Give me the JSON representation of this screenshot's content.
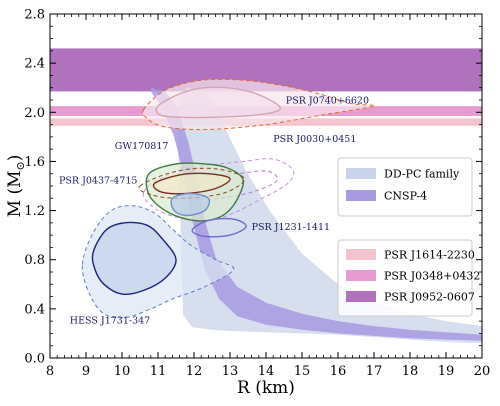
{
  "chart_data": {
    "type": "area",
    "xlabel": "R (km)",
    "ylabel_main": "M (M",
    "ylabel_sub": "⊙",
    "ylabel_end": ")",
    "xlim": [
      8,
      20
    ],
    "ylim": [
      0.0,
      2.8
    ],
    "xticks": [
      8,
      9,
      10,
      11,
      12,
      13,
      14,
      15,
      16,
      17,
      18,
      19,
      20
    ],
    "xtick_labels": [
      "8",
      "9",
      "10",
      "11",
      "12",
      "13",
      "14",
      "15",
      "16",
      "17",
      "18",
      "19",
      "20"
    ],
    "yticks": [
      0.0,
      0.4,
      0.8,
      1.2,
      1.6,
      2.0,
      2.4,
      2.8
    ],
    "ytick_labels": [
      "0.0",
      "0.4",
      "0.8",
      "1.2",
      "1.6",
      "2.0",
      "2.4",
      "2.8"
    ],
    "mass_bands": [
      {
        "name": "PSR J1614-2230",
        "y": [
          1.89,
          1.95
        ],
        "color": "#f3c4cd"
      },
      {
        "name": "PSR J0348+0432",
        "y": [
          1.97,
          2.05
        ],
        "color": "#e79bd1"
      },
      {
        "name": "PSR J0952-0607",
        "y": [
          2.17,
          2.52
        ],
        "color": "#b072bd"
      }
    ],
    "eos_regions": [
      {
        "name": "DD-PC family",
        "color": "#c9d4ea",
        "outline": [
          [
            11.8,
            2.2
          ],
          [
            12.2,
            2.18
          ],
          [
            12.55,
            2.08
          ],
          [
            12.9,
            1.85
          ],
          [
            13.4,
            1.55
          ],
          [
            14.1,
            1.2
          ],
          [
            15.0,
            0.85
          ],
          [
            16.0,
            0.6
          ],
          [
            17.0,
            0.46
          ],
          [
            18.0,
            0.36
          ],
          [
            19.0,
            0.3
          ],
          [
            20.0,
            0.26
          ],
          [
            20.0,
            0.12
          ],
          [
            19.0,
            0.13
          ],
          [
            18.0,
            0.15
          ],
          [
            17.0,
            0.17
          ],
          [
            16.0,
            0.19
          ],
          [
            15.0,
            0.2
          ],
          [
            14.0,
            0.21
          ],
          [
            13.0,
            0.22
          ],
          [
            12.5,
            0.23
          ],
          [
            11.95,
            0.25
          ],
          [
            11.7,
            0.35
          ],
          [
            11.65,
            0.8
          ],
          [
            11.6,
            1.3
          ],
          [
            11.55,
            1.8
          ],
          [
            11.6,
            2.1
          ]
        ]
      },
      {
        "name": "CNSP-4",
        "color": "#a79ae0",
        "outline": [
          [
            10.8,
            2.2
          ],
          [
            11.2,
            2.17
          ],
          [
            11.55,
            2.03
          ],
          [
            11.85,
            1.75
          ],
          [
            12.05,
            1.5
          ],
          [
            12.3,
            1.12
          ],
          [
            12.6,
            0.82
          ],
          [
            13.2,
            0.58
          ],
          [
            14.0,
            0.45
          ],
          [
            15.0,
            0.36
          ],
          [
            16.0,
            0.3
          ],
          [
            17.0,
            0.26
          ],
          [
            18.0,
            0.23
          ],
          [
            19.0,
            0.21
          ],
          [
            20.0,
            0.19
          ],
          [
            20.0,
            0.14
          ],
          [
            19.0,
            0.15
          ],
          [
            18.0,
            0.16
          ],
          [
            17.0,
            0.18
          ],
          [
            16.0,
            0.2
          ],
          [
            15.0,
            0.23
          ],
          [
            14.0,
            0.27
          ],
          [
            13.2,
            0.34
          ],
          [
            12.7,
            0.48
          ],
          [
            12.3,
            0.72
          ],
          [
            11.95,
            1.12
          ],
          [
            11.7,
            1.5
          ],
          [
            11.45,
            1.8
          ],
          [
            11.1,
            2.05
          ],
          [
            10.8,
            2.17
          ]
        ]
      }
    ],
    "legend": {
      "placement": "right",
      "eos_entries": [
        "DD-PC family",
        "CNSP-4"
      ],
      "band_entries": [
        "PSR J1614-2230",
        "PSR J0348+0432",
        "PSR J0952-0607"
      ]
    },
    "annotations": [
      {
        "text": "PSR J0740+6620",
        "x": 14.55,
        "y": 2.07,
        "color": "#1a1a66"
      },
      {
        "text": "GW170817",
        "x": 9.8,
        "y": 1.7,
        "color": "#1a1a66"
      },
      {
        "text": "PSR J0030+0451",
        "x": 14.2,
        "y": 1.76,
        "color": "#1a1a66"
      },
      {
        "text": "PSR J0437-4715",
        "x": 8.25,
        "y": 1.42,
        "color": "#1a1a66"
      },
      {
        "text": "PSR J1231-1411",
        "x": 13.6,
        "y": 1.04,
        "color": "#1a1a66"
      },
      {
        "text": "HESS J1731-347",
        "x": 8.55,
        "y": 0.28,
        "color": "#1a1a66"
      }
    ],
    "contours": [
      {
        "name": "PSR J0740+6620 (68%)",
        "style": "solid",
        "color": "#7a1212",
        "fill": "#ecd0e4",
        "points": [
          [
            11.0,
            2.05
          ],
          [
            11.6,
            2.15
          ],
          [
            12.3,
            2.2
          ],
          [
            13.2,
            2.19
          ],
          [
            13.9,
            2.13
          ],
          [
            14.4,
            2.03
          ],
          [
            13.8,
            1.98
          ],
          [
            12.6,
            1.96
          ],
          [
            11.6,
            1.96
          ],
          [
            11.05,
            1.98
          ]
        ]
      },
      {
        "name": "PSR J0740+6620 (95%)",
        "style": "dashed",
        "color": "#e06a2a",
        "fill": "#f6e6ef",
        "points": [
          [
            10.6,
            2.02
          ],
          [
            11.2,
            2.18
          ],
          [
            12.2,
            2.26
          ],
          [
            13.4,
            2.26
          ],
          [
            14.6,
            2.21
          ],
          [
            15.6,
            2.14
          ],
          [
            16.4,
            2.07
          ],
          [
            17.0,
            2.05
          ],
          [
            15.6,
            1.98
          ],
          [
            14.0,
            1.9
          ],
          [
            12.4,
            1.86
          ],
          [
            11.2,
            1.88
          ],
          [
            10.7,
            1.95
          ]
        ]
      },
      {
        "name": "PSR J0030+0451 (95%)",
        "style": "dashed",
        "color": "#c98be0",
        "fill": "none",
        "points": [
          [
            10.6,
            1.35
          ],
          [
            11.2,
            1.48
          ],
          [
            12.2,
            1.56
          ],
          [
            13.4,
            1.6
          ],
          [
            14.2,
            1.62
          ],
          [
            14.75,
            1.53
          ],
          [
            14.6,
            1.42
          ],
          [
            13.9,
            1.3
          ],
          [
            13.1,
            1.18
          ],
          [
            12.4,
            1.12
          ],
          [
            11.6,
            1.14
          ],
          [
            10.9,
            1.22
          ]
        ]
      },
      {
        "name": "PSR J0030+0451 (68%)",
        "style": "dashed",
        "color": "#b07ad8",
        "fill": "none",
        "points": [
          [
            11.4,
            1.38
          ],
          [
            12.3,
            1.46
          ],
          [
            13.2,
            1.5
          ],
          [
            14.05,
            1.52
          ],
          [
            14.3,
            1.44
          ],
          [
            13.6,
            1.35
          ],
          [
            12.7,
            1.3
          ],
          [
            11.8,
            1.3
          ]
        ]
      },
      {
        "name": "PSR J0437-4715 (95%)",
        "style": "solid",
        "color": "#3f7a3f",
        "fill": "#dbead0",
        "points": [
          [
            10.75,
            1.5
          ],
          [
            11.5,
            1.58
          ],
          [
            12.3,
            1.58
          ],
          [
            12.9,
            1.55
          ],
          [
            13.35,
            1.46
          ],
          [
            13.25,
            1.32
          ],
          [
            12.9,
            1.18
          ],
          [
            12.4,
            1.12
          ],
          [
            11.8,
            1.13
          ],
          [
            11.2,
            1.2
          ],
          [
            10.75,
            1.33
          ]
        ]
      },
      {
        "name": "GW170817 (68%)",
        "style": "solid",
        "color": "#7a2e1e",
        "fill": "#f4e8c8",
        "points": [
          [
            10.9,
            1.42
          ],
          [
            11.6,
            1.49
          ],
          [
            12.4,
            1.5
          ],
          [
            13.0,
            1.46
          ],
          [
            12.6,
            1.38
          ],
          [
            11.8,
            1.34
          ],
          [
            11.1,
            1.35
          ]
        ]
      },
      {
        "name": "GW170817 (95%)",
        "style": "dashed",
        "color": "#8a4a1c",
        "fill": "none",
        "points": [
          [
            10.5,
            1.4
          ],
          [
            11.5,
            1.52
          ],
          [
            12.6,
            1.54
          ],
          [
            13.4,
            1.46
          ],
          [
            12.8,
            1.34
          ],
          [
            11.6,
            1.3
          ],
          [
            10.8,
            1.33
          ]
        ]
      },
      {
        "name": "PSR J0437-4715 (68%)",
        "style": "solid",
        "color": "#6f8fc9",
        "fill": "#b9cce8",
        "points": [
          [
            11.4,
            1.3
          ],
          [
            11.9,
            1.34
          ],
          [
            12.4,
            1.3
          ],
          [
            12.3,
            1.2
          ],
          [
            11.8,
            1.16
          ],
          [
            11.45,
            1.2
          ]
        ]
      },
      {
        "name": "PSR J1231-1411 (68%)",
        "style": "solid",
        "color": "#6a6ad0",
        "fill": "none",
        "points": [
          [
            11.95,
            1.04
          ],
          [
            12.4,
            1.12
          ],
          [
            13.1,
            1.13
          ],
          [
            13.45,
            1.07
          ],
          [
            13.0,
            1.0
          ],
          [
            12.3,
            0.99
          ]
        ]
      },
      {
        "name": "HESS J1731-347 (95%)",
        "style": "dashed",
        "color": "#5a7fd0",
        "fill": "#dde6f4",
        "points": [
          [
            8.9,
            0.76
          ],
          [
            9.2,
            1.02
          ],
          [
            9.7,
            1.2
          ],
          [
            10.3,
            1.24
          ],
          [
            10.9,
            1.18
          ],
          [
            11.4,
            1.05
          ],
          [
            11.9,
            0.92
          ],
          [
            12.6,
            0.8
          ],
          [
            13.1,
            0.72
          ],
          [
            12.3,
            0.58
          ],
          [
            11.4,
            0.48
          ],
          [
            10.8,
            0.4
          ],
          [
            10.1,
            0.33
          ],
          [
            9.5,
            0.36
          ],
          [
            9.1,
            0.52
          ]
        ]
      },
      {
        "name": "HESS J1731-347 (68%)",
        "style": "solid",
        "color": "#1a237e",
        "fill": "#c2d0ea",
        "points": [
          [
            9.2,
            0.86
          ],
          [
            9.55,
            1.04
          ],
          [
            10.05,
            1.1
          ],
          [
            10.7,
            1.08
          ],
          [
            11.15,
            0.96
          ],
          [
            11.5,
            0.8
          ],
          [
            11.2,
            0.65
          ],
          [
            10.6,
            0.55
          ],
          [
            10.0,
            0.52
          ],
          [
            9.5,
            0.6
          ],
          [
            9.25,
            0.72
          ]
        ]
      }
    ]
  }
}
